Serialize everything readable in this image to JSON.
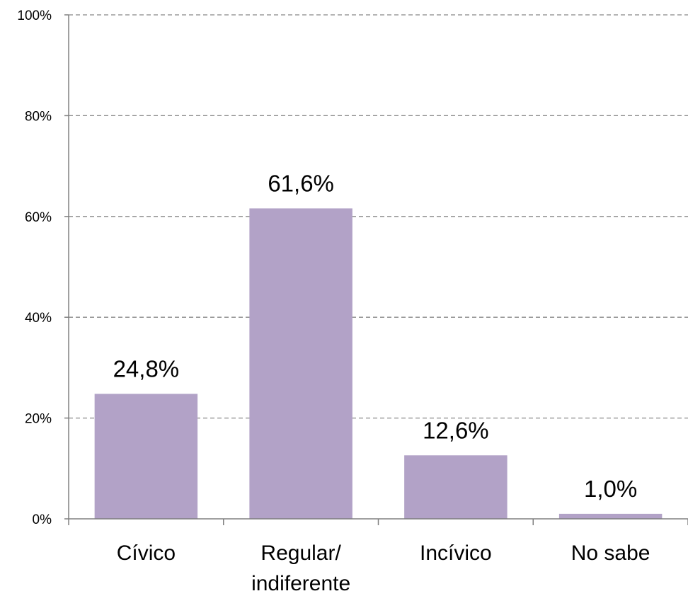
{
  "chart_data": {
    "type": "bar",
    "categories": [
      "Cívico",
      "Regular/ indiferente",
      "Incívico",
      "No sabe"
    ],
    "category_lines": [
      [
        "Cívico"
      ],
      [
        "Regular/",
        "indiferente"
      ],
      [
        "Incívico"
      ],
      [
        "No sabe"
      ]
    ],
    "values": [
      24.8,
      61.6,
      12.6,
      1.0
    ],
    "data_labels": [
      "24,8%",
      "61,6%",
      "12,6%",
      "1,0%"
    ],
    "y_ticks": [
      0,
      20,
      40,
      60,
      80,
      100
    ],
    "y_tick_labels": [
      "0%",
      "20%",
      "40%",
      "60%",
      "80%",
      "100%"
    ],
    "ylim": [
      0,
      100
    ],
    "title": "",
    "xlabel": "",
    "ylabel": "",
    "grid": "horizontal dashed",
    "legend": "none",
    "bar_color": "#b2a2c7",
    "grid_color": "#888888",
    "axis_color": "#808080"
  }
}
